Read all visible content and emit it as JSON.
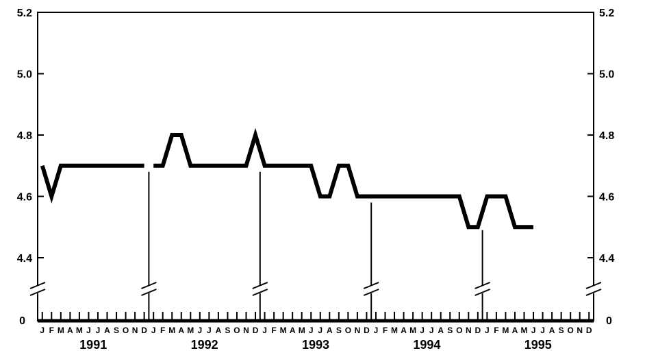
{
  "chart_data": {
    "type": "line",
    "title": "",
    "xlabel": "",
    "ylabel": "",
    "ylim": [
      4.4,
      5.2
    ],
    "y_ticks": [
      "5.2",
      "5.0",
      "4.8",
      "4.6",
      "4.4"
    ],
    "y_zero_label": "0",
    "y_axis_break": true,
    "x_axis_break_after_year": true,
    "grid": false,
    "legend": "none",
    "month_labels": [
      "J",
      "F",
      "M",
      "A",
      "M",
      "J",
      "J",
      "A",
      "S",
      "O",
      "N",
      "D"
    ],
    "years": [
      "1991",
      "1992",
      "1993",
      "1994",
      "1995"
    ],
    "series": [
      {
        "segments": [
          {
            "year": "1991",
            "values": [
              4.7,
              4.6,
              4.7,
              4.7,
              4.7,
              4.7,
              4.7,
              4.7,
              4.7,
              4.7,
              4.7,
              4.7
            ]
          },
          {
            "year": "1992-1995",
            "start_year": "1992",
            "start_month": 1,
            "values": [
              4.7,
              4.7,
              4.8,
              4.8,
              4.7,
              4.7,
              4.7,
              4.7,
              4.7,
              4.7,
              4.7,
              4.8,
              4.7,
              4.7,
              4.7,
              4.7,
              4.7,
              4.7,
              4.6,
              4.6,
              4.7,
              4.7,
              4.6,
              4.6,
              4.6,
              4.6,
              4.6,
              4.6,
              4.6,
              4.6,
              4.6,
              4.6,
              4.6,
              4.6,
              4.5,
              4.5,
              4.6,
              4.6,
              4.6,
              4.5,
              4.5,
              4.5
            ]
          }
        ]
      }
    ]
  }
}
